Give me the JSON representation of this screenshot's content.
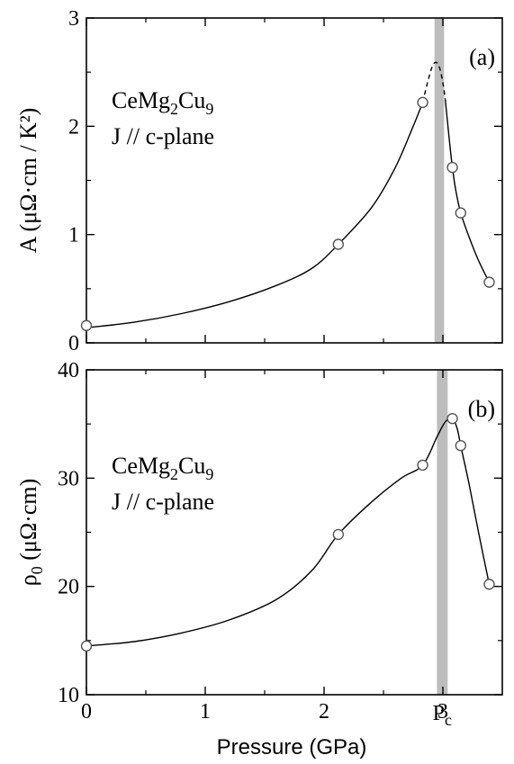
{
  "chart_data": [
    {
      "type": "scatter",
      "panel_label": "(a)",
      "ylabel": "A (μΩ·cm / K²)",
      "ylim": [
        0,
        3
      ],
      "yticks": [
        0,
        1,
        2,
        3
      ],
      "xlim": [
        0,
        3.5
      ],
      "xticks": [
        0,
        1,
        2,
        3
      ],
      "annotation": {
        "compound": "CeMg",
        "sub1": "2",
        "mid": "Cu",
        "sub2": "9",
        "line2": "J // c-plane"
      },
      "band": {
        "x": [
          2.93,
          3.01
        ],
        "color": "#bdbdbd"
      },
      "points": [
        {
          "x": 0.0,
          "y": 0.16
        },
        {
          "x": 2.12,
          "y": 0.91
        },
        {
          "x": 2.83,
          "y": 2.22
        },
        {
          "x": 3.08,
          "y": 1.62
        },
        {
          "x": 3.15,
          "y": 1.2
        },
        {
          "x": 3.39,
          "y": 0.56
        }
      ],
      "curve_solid_1": [
        [
          0.0,
          0.14
        ],
        [
          0.4,
          0.19
        ],
        [
          0.8,
          0.27
        ],
        [
          1.2,
          0.38
        ],
        [
          1.6,
          0.53
        ],
        [
          1.9,
          0.69
        ],
        [
          2.12,
          0.91
        ],
        [
          2.4,
          1.25
        ],
        [
          2.6,
          1.62
        ],
        [
          2.75,
          2.0
        ],
        [
          2.83,
          2.22
        ]
      ],
      "curve_dashed": [
        [
          2.83,
          2.22
        ],
        [
          2.87,
          2.4
        ],
        [
          2.91,
          2.55
        ],
        [
          2.94,
          2.59
        ],
        [
          2.97,
          2.55
        ],
        [
          3.0,
          2.4
        ],
        [
          3.02,
          2.25
        ]
      ],
      "curve_solid_2": [
        [
          3.02,
          2.25
        ],
        [
          3.05,
          1.92
        ],
        [
          3.08,
          1.62
        ],
        [
          3.11,
          1.4
        ],
        [
          3.15,
          1.2
        ],
        [
          3.22,
          0.98
        ],
        [
          3.3,
          0.76
        ],
        [
          3.39,
          0.56
        ]
      ],
      "series_color": "#000000",
      "marker_stroke": "#555555"
    },
    {
      "type": "scatter",
      "panel_label": "(b)",
      "ylabel_main": "ρ",
      "ylabel_sub": "0",
      "ylabel_rest": " (μΩ·cm)",
      "ylim": [
        10,
        40
      ],
      "yticks": [
        10,
        20,
        30,
        40
      ],
      "xlim": [
        0,
        3.5
      ],
      "xticks": [
        0,
        1,
        2,
        3
      ],
      "xlabel": "Pressure (GPa)",
      "pc_label": {
        "main": "P",
        "sub": "c"
      },
      "annotation": {
        "compound": "CeMg",
        "sub1": "2",
        "mid": "Cu",
        "sub2": "9",
        "line2": "J // c-plane"
      },
      "band": {
        "x": [
          2.95,
          3.04
        ],
        "color": "#bdbdbd"
      },
      "points": [
        {
          "x": 0.0,
          "y": 14.5
        },
        {
          "x": 2.12,
          "y": 24.8
        },
        {
          "x": 2.83,
          "y": 31.2
        },
        {
          "x": 3.08,
          "y": 35.5
        },
        {
          "x": 3.15,
          "y": 33.0
        },
        {
          "x": 3.39,
          "y": 20.2
        }
      ],
      "curve_solid_1": [
        [
          0.0,
          14.5
        ],
        [
          0.4,
          14.9
        ],
        [
          0.8,
          15.7
        ],
        [
          1.2,
          16.9
        ],
        [
          1.6,
          18.8
        ],
        [
          1.9,
          21.5
        ],
        [
          2.12,
          24.8
        ],
        [
          2.4,
          27.8
        ],
        [
          2.65,
          30.0
        ],
        [
          2.83,
          31.2
        ],
        [
          2.95,
          33.8
        ],
        [
          3.02,
          35.2
        ],
        [
          3.08,
          35.5
        ],
        [
          3.12,
          34.6
        ],
        [
          3.15,
          33.0
        ],
        [
          3.22,
          29.5
        ],
        [
          3.3,
          25.0
        ],
        [
          3.39,
          20.2
        ]
      ],
      "series_color": "#000000",
      "marker_stroke": "#555555"
    }
  ]
}
